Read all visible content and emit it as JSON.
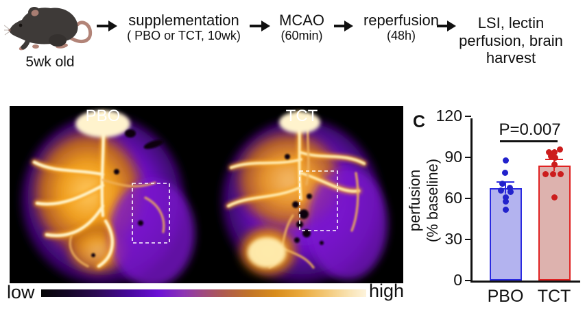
{
  "flow": {
    "mouse_caption": "5wk old",
    "steps": [
      {
        "label": "supplementation",
        "sublabel": "( PBO or TCT, 10wk)"
      },
      {
        "label": "MCAO",
        "sublabel": "(60min)"
      },
      {
        "label": "reperfusion",
        "sublabel": "(48h)"
      },
      {
        "lines": [
          "LSI, lectin",
          "perfusion, brain",
          "harvest"
        ]
      }
    ]
  },
  "lsi": {
    "labels": [
      "PBO",
      "TCT"
    ],
    "colorbar": {
      "low": "low",
      "high": "high"
    }
  },
  "chart_data": {
    "type": "bar",
    "panel_label": "C",
    "categories": [
      "PBO",
      "TCT"
    ],
    "means": [
      67.5,
      84
    ],
    "sem_upper": [
      71.5,
      88
    ],
    "scatter": {
      "PBO": [
        88,
        79,
        71,
        68,
        66,
        65,
        61,
        58,
        52
      ],
      "TCT": [
        96,
        94,
        94,
        91,
        90,
        85,
        78,
        78,
        78,
        61
      ]
    },
    "ylabel_line1": "perfusion",
    "ylabel_line2": "(% baseline)",
    "yticks": [
      0,
      30,
      60,
      90,
      120
    ],
    "ylim": [
      0,
      120
    ],
    "annotation": "P=0.007",
    "legend_position": "none",
    "grid": false,
    "colors": {
      "fills": [
        "#b3b3ef",
        "#ddb2ae"
      ],
      "borders": [
        "#2a2ae0",
        "#e02222"
      ],
      "dots": [
        "#2222cc",
        "#cc1d1d"
      ]
    }
  }
}
